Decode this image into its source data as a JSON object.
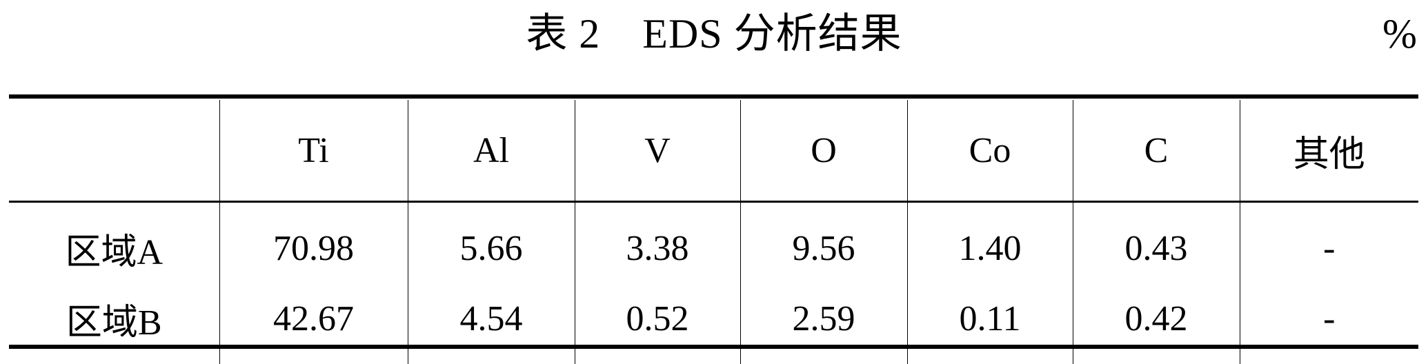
{
  "title": "表 2　EDS 分析结果",
  "unit": "%",
  "table": {
    "columns": [
      "",
      "Ti",
      "Al",
      "V",
      "O",
      "Co",
      "C",
      "其他"
    ],
    "rows": [
      {
        "label": "区域A",
        "values": [
          "70.98",
          "5.66",
          "3.38",
          "9.56",
          "1.40",
          "0.43",
          "-"
        ]
      },
      {
        "label": "区域B",
        "values": [
          "42.67",
          "4.54",
          "0.52",
          "2.59",
          "0.11",
          "0.42",
          "-"
        ]
      }
    ]
  }
}
